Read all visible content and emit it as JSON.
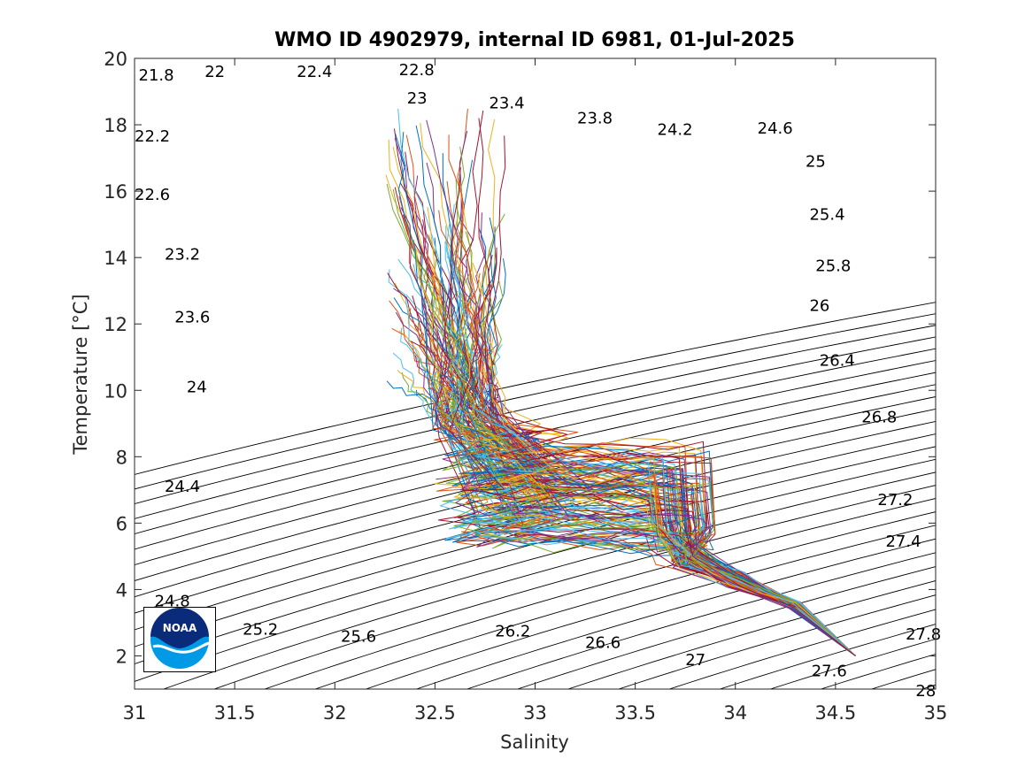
{
  "chart_data": {
    "type": "line",
    "title": "WMO ID 4902979, internal ID 6981, 01-Jul-2025",
    "xlabel": "Salinity",
    "ylabel": "Temperature [°C]",
    "xlim": [
      31,
      35
    ],
    "ylim": [
      1,
      20
    ],
    "xticks": [
      31,
      31.5,
      32,
      32.5,
      33,
      33.5,
      34,
      34.5,
      35
    ],
    "yticks": [
      2,
      4,
      6,
      8,
      10,
      12,
      14,
      16,
      18,
      20
    ],
    "grid": false,
    "legend": "none",
    "density_contour_levels": [
      21.8,
      22,
      22.2,
      22.4,
      22.6,
      22.8,
      23,
      23.2,
      23.4,
      23.6,
      23.8,
      24,
      24.2,
      24.4,
      24.6,
      24.8,
      25,
      25.2,
      25.4,
      25.6,
      25.8,
      26,
      26.2,
      26.4,
      26.6,
      26.8,
      27,
      27.2,
      27.4,
      27.6,
      27.8,
      28
    ],
    "contour_labels": [
      {
        "text": "21.8",
        "x": 31.02,
        "y": 19.5
      },
      {
        "text": "22",
        "x": 31.35,
        "y": 19.6
      },
      {
        "text": "22.4",
        "x": 31.81,
        "y": 19.6
      },
      {
        "text": "22.8",
        "x": 32.32,
        "y": 19.65
      },
      {
        "text": "23",
        "x": 32.36,
        "y": 18.8
      },
      {
        "text": "23.4",
        "x": 32.77,
        "y": 18.65
      },
      {
        "text": "23.8",
        "x": 33.21,
        "y": 18.2
      },
      {
        "text": "24.2",
        "x": 33.61,
        "y": 17.85
      },
      {
        "text": "24.6",
        "x": 34.11,
        "y": 17.9
      },
      {
        "text": "25",
        "x": 34.35,
        "y": 16.9
      },
      {
        "text": "25.4",
        "x": 34.37,
        "y": 15.3
      },
      {
        "text": "25.8",
        "x": 34.4,
        "y": 13.75
      },
      {
        "text": "26",
        "x": 34.37,
        "y": 12.55
      },
      {
        "text": "26.4",
        "x": 34.42,
        "y": 10.9
      },
      {
        "text": "26.8",
        "x": 34.63,
        "y": 9.2
      },
      {
        "text": "27.2",
        "x": 34.71,
        "y": 6.7
      },
      {
        "text": "27.4",
        "x": 34.75,
        "y": 5.45
      },
      {
        "text": "27.6",
        "x": 34.38,
        "y": 1.55
      },
      {
        "text": "27.8",
        "x": 34.85,
        "y": 2.65
      },
      {
        "text": "28",
        "x": 34.9,
        "y": 0.95
      },
      {
        "text": "22.2",
        "x": 31.0,
        "y": 17.65
      },
      {
        "text": "22.6",
        "x": 31.0,
        "y": 15.9
      },
      {
        "text": "23.2",
        "x": 31.15,
        "y": 14.1
      },
      {
        "text": "23.6",
        "x": 31.2,
        "y": 12.2
      },
      {
        "text": "24",
        "x": 31.26,
        "y": 10.1
      },
      {
        "text": "24.4",
        "x": 31.15,
        "y": 7.1
      },
      {
        "text": "24.8",
        "x": 31.1,
        "y": 3.65
      },
      {
        "text": "25.2",
        "x": 31.54,
        "y": 2.8
      },
      {
        "text": "25.6",
        "x": 32.03,
        "y": 2.58
      },
      {
        "text": "26.2",
        "x": 32.8,
        "y": 2.75
      },
      {
        "text": "26.6",
        "x": 33.25,
        "y": 2.4
      },
      {
        "text": "27",
        "x": 33.75,
        "y": 1.88
      }
    ],
    "profile_envelope": {
      "surface_branch_salinity_range": [
        32.25,
        32.85
      ],
      "surface_branch_temperature_range": [
        9.5,
        19.2
      ],
      "thermocline_salinity_range": [
        32.45,
        33.9
      ],
      "thermocline_temperature_range": [
        5.2,
        9.5
      ],
      "deep_tail": [
        [
          33.75,
          5.0
        ],
        [
          34.0,
          4.3
        ],
        [
          34.3,
          3.5
        ],
        [
          34.6,
          2.0
        ]
      ]
    },
    "logo": "NOAA"
  }
}
